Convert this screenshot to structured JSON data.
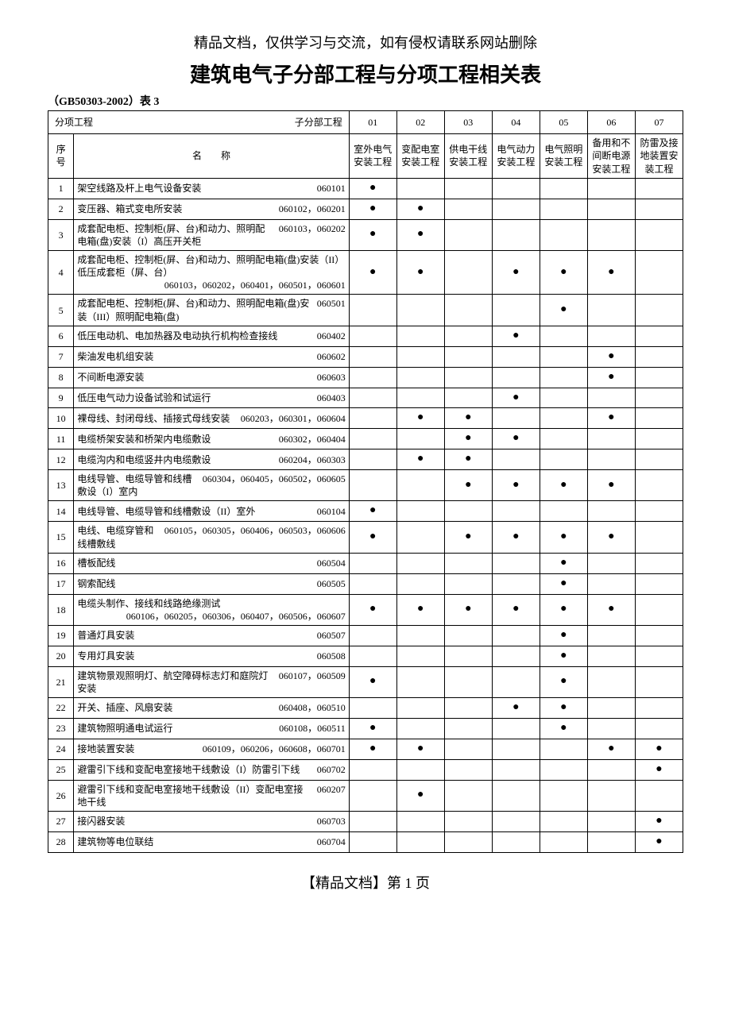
{
  "header_note": "精品文档，仅供学习与交流，如有侵权请联系网站删除",
  "title": "建筑电气子分部工程与分项工程相关表",
  "subtitle": "（GB50303-2002）表 3",
  "corner_left": "分项工程",
  "corner_right": "子分部工程",
  "seq_header": "序号",
  "name_header": "名　　称",
  "footer": "【精品文档】第 1 页",
  "mark_char": "●",
  "columns": [
    {
      "num": "01",
      "label": "室外电气安装工程"
    },
    {
      "num": "02",
      "label": "变配电室安装工程"
    },
    {
      "num": "03",
      "label": "供电干线安装工程"
    },
    {
      "num": "04",
      "label": "电气动力安装工程"
    },
    {
      "num": "05",
      "label": "电气照明安装工程"
    },
    {
      "num": "06",
      "label": "备用和不间断电源安装工程"
    },
    {
      "num": "07",
      "label": "防雷及接地装置安装工程"
    }
  ],
  "rows": [
    {
      "seq": "1",
      "name": "架空线路及杆上电气设备安装",
      "code": "060101",
      "marks": [
        1,
        0,
        0,
        0,
        0,
        0,
        0
      ]
    },
    {
      "seq": "2",
      "name": "变压器、箱式变电所安装",
      "code": "060102，060201",
      "marks": [
        1,
        1,
        0,
        0,
        0,
        0,
        0
      ]
    },
    {
      "seq": "3",
      "name": "成套配电柜、控制柜(屏、台)和动力、照明配电箱(盘)安装（I）高压开关柜",
      "code": "060103，060202",
      "marks": [
        1,
        1,
        0,
        0,
        0,
        0,
        0
      ]
    },
    {
      "seq": "4",
      "name": "成套配电柜、控制柜(屏、台)和动力、照明配电箱(盘)安装（II）低压成套柜（屏、台）",
      "code": "060103，060202，060401，060501，060601",
      "code_below": true,
      "marks": [
        1,
        1,
        0,
        1,
        1,
        1,
        0
      ]
    },
    {
      "seq": "5",
      "name": "成套配电柜、控制柜(屏、台)和动力、照明配电箱(盘)安装（III）照明配电箱(盘)",
      "code": "060501",
      "marks": [
        0,
        0,
        0,
        0,
        1,
        0,
        0
      ]
    },
    {
      "seq": "6",
      "name": "低压电动机、电加热器及电动执行机构检查接线",
      "code": "060402",
      "marks": [
        0,
        0,
        0,
        1,
        0,
        0,
        0
      ]
    },
    {
      "seq": "7",
      "name": "柴油发电机组安装",
      "code": "060602",
      "marks": [
        0,
        0,
        0,
        0,
        0,
        1,
        0
      ]
    },
    {
      "seq": "8",
      "name": "不间断电源安装",
      "code": "060603",
      "marks": [
        0,
        0,
        0,
        0,
        0,
        1,
        0
      ]
    },
    {
      "seq": "9",
      "name": "低压电气动力设备试验和试运行",
      "code": "060403",
      "marks": [
        0,
        0,
        0,
        1,
        0,
        0,
        0
      ]
    },
    {
      "seq": "10",
      "name": "裸母线、封闭母线、插接式母线安装",
      "code": "060203，060301，060604",
      "marks": [
        0,
        1,
        1,
        0,
        0,
        1,
        0
      ]
    },
    {
      "seq": "11",
      "name": "电缆桥架安装和桥架内电缆敷设",
      "code": "060302，060404",
      "marks": [
        0,
        0,
        1,
        1,
        0,
        0,
        0
      ]
    },
    {
      "seq": "12",
      "name": "电缆沟内和电缆竖井内电缆敷设",
      "code": "060204，060303",
      "marks": [
        0,
        1,
        1,
        0,
        0,
        0,
        0
      ]
    },
    {
      "seq": "13",
      "name": "电线导管、电缆导管和线槽敷设（I）室内",
      "code": "060304，060405，060502，060605",
      "marks": [
        0,
        0,
        1,
        1,
        1,
        1,
        0
      ]
    },
    {
      "seq": "14",
      "name": "电线导管、电缆导管和线槽敷设（II）室外",
      "code": "060104",
      "marks": [
        1,
        0,
        0,
        0,
        0,
        0,
        0
      ]
    },
    {
      "seq": "15",
      "name": "电线、电缆穿管和线槽敷线",
      "code": "060105，060305，060406，060503，060606",
      "marks": [
        1,
        0,
        1,
        1,
        1,
        1,
        0
      ]
    },
    {
      "seq": "16",
      "name": "槽板配线",
      "code": "060504",
      "marks": [
        0,
        0,
        0,
        0,
        1,
        0,
        0
      ]
    },
    {
      "seq": "17",
      "name": "钢索配线",
      "code": "060505",
      "marks": [
        0,
        0,
        0,
        0,
        1,
        0,
        0
      ]
    },
    {
      "seq": "18",
      "name": "电缆头制作、接线和线路绝缘测试",
      "code": "060106，060205，060306，060407，060506，060607",
      "code_below": true,
      "marks": [
        1,
        1,
        1,
        1,
        1,
        1,
        0
      ]
    },
    {
      "seq": "19",
      "name": "普通灯具安装",
      "code": "060507",
      "marks": [
        0,
        0,
        0,
        0,
        1,
        0,
        0
      ]
    },
    {
      "seq": "20",
      "name": "专用灯具安装",
      "code": "060508",
      "marks": [
        0,
        0,
        0,
        0,
        1,
        0,
        0
      ]
    },
    {
      "seq": "21",
      "name": "建筑物景观照明灯、航空障碍标志灯和庭院灯安装",
      "code": "060107，060509",
      "marks": [
        1,
        0,
        0,
        0,
        1,
        0,
        0
      ]
    },
    {
      "seq": "22",
      "name": "开关、插座、风扇安装",
      "code": "060408，060510",
      "marks": [
        0,
        0,
        0,
        1,
        1,
        0,
        0
      ]
    },
    {
      "seq": "23",
      "name": "建筑物照明通电试运行",
      "code": "060108，060511",
      "marks": [
        1,
        0,
        0,
        0,
        1,
        0,
        0
      ]
    },
    {
      "seq": "24",
      "name": "接地装置安装",
      "code": "060109，060206，060608，060701",
      "marks": [
        1,
        1,
        0,
        0,
        0,
        1,
        1
      ]
    },
    {
      "seq": "25",
      "name": "避雷引下线和变配电室接地干线敷设（I）防雷引下线",
      "code": "060702",
      "marks": [
        0,
        0,
        0,
        0,
        0,
        0,
        1
      ]
    },
    {
      "seq": "26",
      "name": "避雷引下线和变配电室接地干线敷设（II）变配电室接地干线",
      "code": "060207",
      "marks": [
        0,
        1,
        0,
        0,
        0,
        0,
        0
      ]
    },
    {
      "seq": "27",
      "name": "接闪器安装",
      "code": "060703",
      "marks": [
        0,
        0,
        0,
        0,
        0,
        0,
        1
      ]
    },
    {
      "seq": "28",
      "name": "建筑物等电位联结",
      "code": "060704",
      "marks": [
        0,
        0,
        0,
        0,
        0,
        0,
        1
      ]
    }
  ]
}
